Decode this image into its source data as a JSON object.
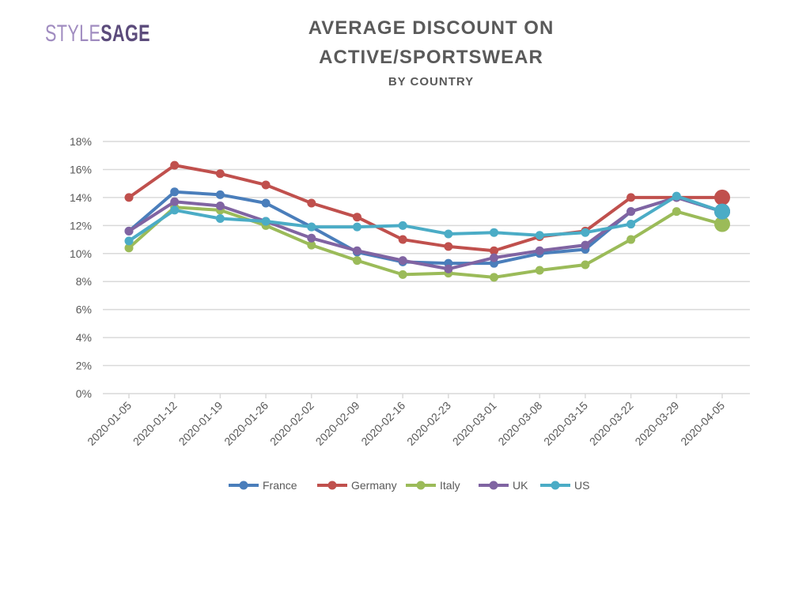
{
  "brand": {
    "logo_part1": "STYLE",
    "logo_part2": "SAGE",
    "color_style": "#a08cc0",
    "color_sage": "#5b4b7b"
  },
  "header": {
    "title_line1": "AVERAGE DISCOUNT ON",
    "title_line2": "ACTIVE/SPORTSWEAR",
    "subtitle": "BY COUNTRY"
  },
  "chart_data": {
    "type": "line",
    "title": "AVERAGE DISCOUNT ON ACTIVE/SPORTSWEAR",
    "subtitle": "BY COUNTRY",
    "xlabel": "",
    "ylabel": "",
    "x": [
      "2020-01-05",
      "2020-01-12",
      "2020-01-19",
      "2020-01-26",
      "2020-02-02",
      "2020-02-09",
      "2020-02-16",
      "2020-02-23",
      "2020-03-01",
      "2020-03-08",
      "2020-03-15",
      "2020-03-22",
      "2020-03-29",
      "2020-04-05"
    ],
    "ylim": [
      0,
      18
    ],
    "yticks": [
      "0%",
      "2%",
      "4%",
      "6%",
      "8%",
      "10%",
      "12%",
      "14%",
      "16%",
      "18%"
    ],
    "ytick_values": [
      0,
      2,
      4,
      6,
      8,
      10,
      12,
      14,
      16,
      18
    ],
    "grid": true,
    "legend_position": "bottom",
    "series": [
      {
        "name": "France",
        "color": "#4a7ebb",
        "values": [
          11.6,
          14.4,
          14.2,
          13.6,
          11.9,
          10.1,
          9.4,
          9.3,
          9.3,
          10.0,
          10.3,
          13.0,
          14.0,
          13.0
        ]
      },
      {
        "name": "Germany",
        "color": "#c0504d",
        "values": [
          14.0,
          16.3,
          15.7,
          14.9,
          13.6,
          12.6,
          11.0,
          10.5,
          10.2,
          11.2,
          11.6,
          14.0,
          14.0,
          14.0
        ]
      },
      {
        "name": "Italy",
        "color": "#9bbb59",
        "values": [
          10.4,
          13.3,
          13.1,
          12.0,
          10.6,
          9.5,
          8.5,
          8.6,
          8.3,
          8.8,
          9.2,
          11.0,
          13.0,
          12.1
        ]
      },
      {
        "name": "UK",
        "color": "#8064a2",
        "values": [
          11.6,
          13.7,
          13.4,
          12.3,
          11.1,
          10.2,
          9.5,
          8.9,
          9.7,
          10.2,
          10.6,
          13.0,
          14.0,
          13.0
        ]
      },
      {
        "name": "US",
        "color": "#4bacc6",
        "values": [
          10.9,
          13.1,
          12.5,
          12.3,
          11.9,
          11.9,
          12.0,
          11.4,
          11.5,
          11.3,
          11.5,
          12.1,
          14.1,
          13.0
        ]
      }
    ],
    "colors": {
      "grid": "#d9d9d9",
      "tick_text": "#595959"
    }
  }
}
